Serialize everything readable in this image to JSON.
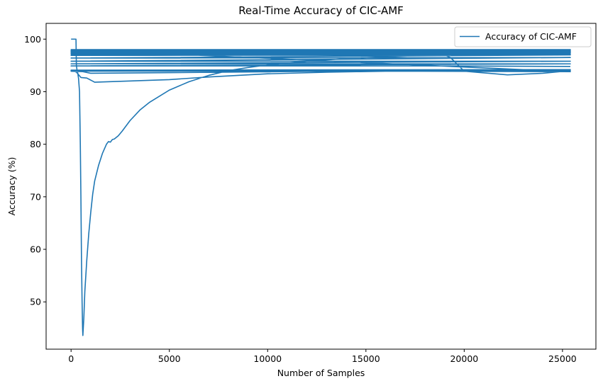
{
  "chart_data": {
    "type": "line",
    "title": "Real-Time Accuracy of CIC-AMF",
    "xlabel": "Number of Samples",
    "ylabel": "Accuracy (%)",
    "xlim": [
      -1270,
      26700
    ],
    "ylim": [
      41,
      103
    ],
    "xticks": [
      0,
      5000,
      10000,
      15000,
      20000,
      25000
    ],
    "xtick_labels": [
      "0",
      "5000",
      "10000",
      "15000",
      "20000",
      "25000"
    ],
    "yticks": [
      50,
      60,
      70,
      80,
      90,
      100
    ],
    "ytick_labels": [
      "50",
      "60",
      "70",
      "80",
      "90",
      "100"
    ],
    "grid": false,
    "legend": {
      "position": "upper right",
      "entries": [
        "Accuracy of CIC-AMF"
      ]
    },
    "colors": {
      "series": "#1f77b4",
      "axis": "#000000",
      "legend_border": "#cccccc"
    },
    "series": [
      {
        "name": "Accuracy of CIC-AMF",
        "points": [
          [
            0,
            100
          ],
          [
            250,
            100
          ],
          [
            270,
            95
          ],
          [
            300,
            94.2
          ],
          [
            330,
            93.8
          ],
          [
            380,
            92.5
          ],
          [
            430,
            90
          ],
          [
            470,
            80
          ],
          [
            500,
            70
          ],
          [
            530,
            58
          ],
          [
            560,
            50
          ],
          [
            585,
            45
          ],
          [
            600,
            43.6
          ],
          [
            650,
            47
          ],
          [
            700,
            52
          ],
          [
            800,
            58
          ],
          [
            900,
            63
          ],
          [
            1000,
            67
          ],
          [
            1100,
            70.5
          ],
          [
            1200,
            73
          ],
          [
            1400,
            76
          ],
          [
            1600,
            78.3
          ],
          [
            1800,
            80
          ],
          [
            1900,
            80.5
          ],
          [
            2000,
            80.4
          ],
          [
            2100,
            80.9
          ],
          [
            2200,
            81
          ],
          [
            2300,
            81.3
          ],
          [
            2400,
            81.6
          ],
          [
            2600,
            82.5
          ],
          [
            3000,
            84.5
          ],
          [
            3500,
            86.5
          ],
          [
            4000,
            88
          ],
          [
            5000,
            90.3
          ],
          [
            6000,
            91.9
          ],
          [
            7000,
            93.1
          ],
          [
            8000,
            94
          ],
          [
            9000,
            94.6
          ],
          [
            10000,
            95.1
          ],
          [
            12000,
            95.8
          ],
          [
            14000,
            96.3
          ],
          [
            16000,
            96.6
          ],
          [
            18000,
            96.9
          ],
          [
            19000,
            97
          ],
          [
            19300,
            96.5
          ],
          [
            19700,
            95
          ],
          [
            20000,
            93.9
          ],
          [
            22200,
            93.2
          ],
          [
            24000,
            93.5
          ],
          [
            25400,
            94
          ],
          [
            0,
            94
          ],
          [
            25400,
            94
          ],
          [
            0,
            93.9
          ],
          [
            600,
            93.8
          ],
          [
            1000,
            93.5
          ],
          [
            20000,
            94.1
          ],
          [
            25400,
            94.2
          ],
          [
            100,
            94.1
          ],
          [
            300,
            93.6
          ],
          [
            500,
            92.7
          ],
          [
            800,
            92.6
          ],
          [
            1200,
            91.8
          ],
          [
            5000,
            92.3
          ],
          [
            7000,
            92.8
          ],
          [
            10000,
            93.4
          ],
          [
            13000,
            93.7
          ],
          [
            16000,
            93.9
          ],
          [
            25400,
            94
          ],
          [
            0,
            94.1
          ],
          [
            25400,
            93.8
          ],
          [
            0,
            98
          ],
          [
            25400,
            98
          ],
          [
            0,
            97.8
          ],
          [
            25400,
            97.9
          ],
          [
            0,
            97.6
          ],
          [
            25400,
            97.7
          ],
          [
            0,
            97.5
          ],
          [
            25400,
            97.5
          ],
          [
            0,
            97.3
          ],
          [
            25400,
            97.4
          ],
          [
            0,
            97.1
          ],
          [
            25400,
            97.2
          ],
          [
            0,
            96.9
          ],
          [
            25400,
            97
          ],
          [
            0,
            96.4
          ],
          [
            25400,
            96.5
          ],
          [
            0,
            95.8
          ],
          [
            25400,
            95.8
          ],
          [
            0,
            95.3
          ],
          [
            25400,
            95.3
          ],
          [
            0,
            94.9
          ],
          [
            18000,
            94.9
          ],
          [
            25400,
            94.8
          ]
        ]
      }
    ]
  }
}
